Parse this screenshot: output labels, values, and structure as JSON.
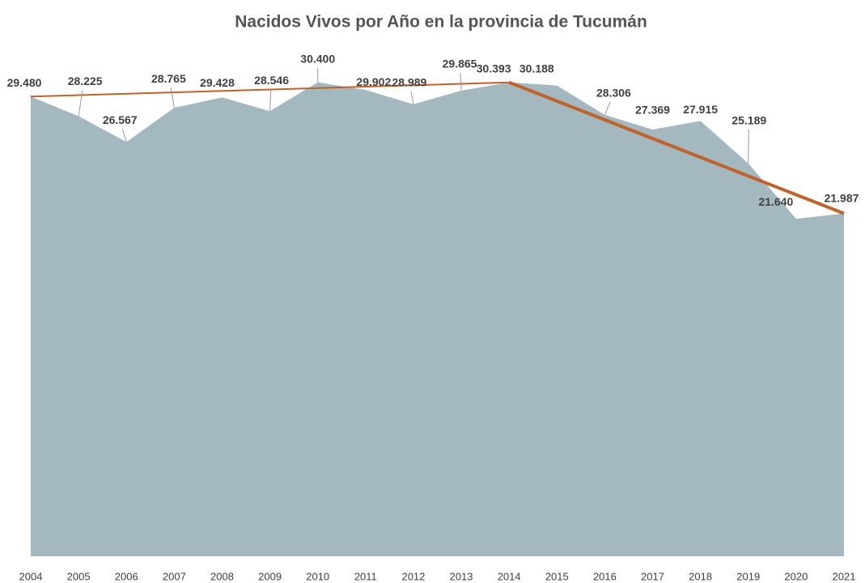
{
  "chart_data": {
    "type": "area",
    "title": "Nacidos Vivos por Año en la provincia de Tucumán",
    "categories": [
      "2004",
      "2005",
      "2006",
      "2007",
      "2008",
      "2009",
      "2010",
      "2011",
      "2012",
      "2013",
      "2014",
      "2015",
      "2016",
      "2017",
      "2018",
      "2019",
      "2020",
      "2021"
    ],
    "values": [
      29480,
      28225,
      26567,
      28765,
      29428,
      28546,
      30400,
      29902,
      28989,
      29865,
      30393,
      30188,
      28306,
      27369,
      27915,
      25189,
      21640,
      21987
    ],
    "value_labels": [
      "29.480",
      "28.225",
      "26.567",
      "28.765",
      "29.428",
      "28.546",
      "30.400",
      "29.902",
      "28.989",
      "29.865",
      "30.393",
      "30.188",
      "28.306",
      "27.369",
      "27.915",
      "25.189",
      "21.640",
      "21.987"
    ],
    "color": "#a3b8bf",
    "trend_color": "#c0622a",
    "ylim": [
      0,
      35000
    ]
  }
}
